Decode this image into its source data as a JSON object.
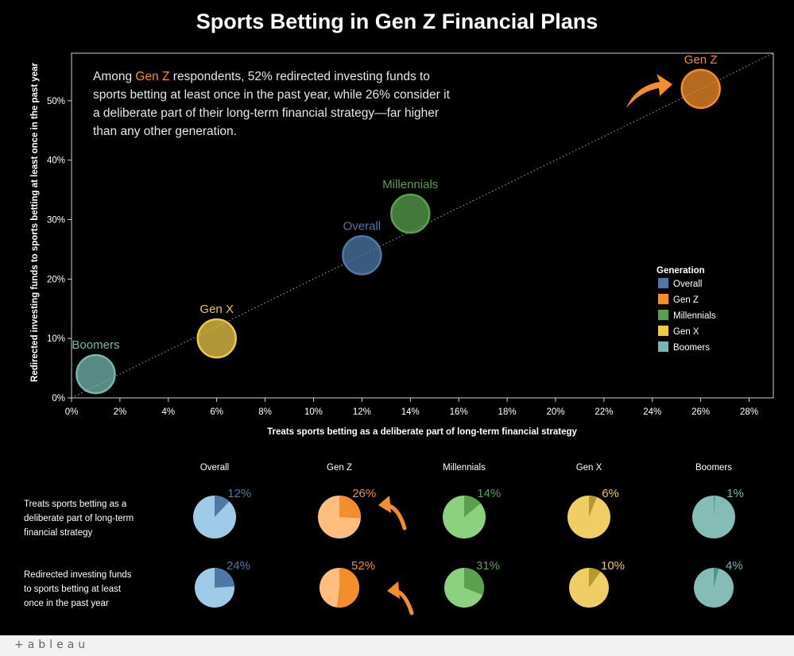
{
  "title": "Sports Betting in Gen Z Financial Plans",
  "annotation": {
    "prefix": "Among ",
    "highlight": "Gen Z",
    "line1_rest": " respondents, 52% redirected investing funds to",
    "line2": "sports betting at least once in the past year, while 26% consider it",
    "line3": "a deliberate part of their long-term financial strategy—far higher",
    "line4": "than any other generation."
  },
  "legend": {
    "title": "Generation",
    "items": [
      {
        "label": "Overall",
        "color": "#4e79a7"
      },
      {
        "label": "Gen Z",
        "color": "#f28e2b"
      },
      {
        "label": "Millennials",
        "color": "#59a14f"
      },
      {
        "label": "Gen X",
        "color": "#edc948"
      },
      {
        "label": "Boomers",
        "color": "#76b7b2"
      }
    ]
  },
  "chart_data": [
    {
      "type": "scatter",
      "xlabel": "Treats sports betting as a deliberate part of long-term financial strategy",
      "ylabel": "Redirected investing funds to sports betting at least once in the past year",
      "xlim": [
        0,
        0.29
      ],
      "ylim": [
        0,
        0.58
      ],
      "x_ticks": [
        "0%",
        "2%",
        "4%",
        "6%",
        "8%",
        "10%",
        "12%",
        "14%",
        "16%",
        "18%",
        "20%",
        "22%",
        "24%",
        "26%",
        "28%"
      ],
      "y_ticks": [
        "0%",
        "10%",
        "20%",
        "30%",
        "40%",
        "50%"
      ],
      "grid": false,
      "trend_line": "dotted diagonal",
      "series": [
        {
          "name": "Boomers",
          "x": 0.01,
          "y": 0.04,
          "color": "#76b7b2",
          "label_color": "#76b7b2"
        },
        {
          "name": "Gen X",
          "x": 0.06,
          "y": 0.1,
          "color": "#edc948",
          "label_color": "#edc948"
        },
        {
          "name": "Overall",
          "x": 0.12,
          "y": 0.24,
          "color": "#4e79a7",
          "label_color": "#4e79a7"
        },
        {
          "name": "Millennials",
          "x": 0.14,
          "y": 0.31,
          "color": "#59a14f",
          "label_color": "#59a14f"
        },
        {
          "name": "Gen Z",
          "x": 0.26,
          "y": 0.52,
          "color": "#f28e2b",
          "label_color": "#f28e2b"
        }
      ]
    },
    {
      "type": "pie",
      "columns": [
        "Overall",
        "Gen Z",
        "Millennials",
        "Gen X",
        "Boomers"
      ],
      "rows": [
        {
          "label_lines": [
            "Treats sports betting as a",
            "deliberate part of long-term",
            "financial strategy"
          ],
          "values": [
            0.12,
            0.26,
            0.14,
            0.06,
            0.01
          ],
          "value_labels": [
            "12%",
            "26%",
            "14%",
            "6%",
            "1%"
          ]
        },
        {
          "label_lines": [
            "Redirected investing funds",
            "to sports betting at least",
            "once in the past year"
          ],
          "values": [
            0.24,
            0.52,
            0.31,
            0.1,
            0.04
          ],
          "value_labels": [
            "24%",
            "52%",
            "31%",
            "10%",
            "4%"
          ]
        }
      ],
      "colors": [
        {
          "dark": "#4e79a7",
          "light": "#a0cbe8"
        },
        {
          "dark": "#f28e2b",
          "light": "#ffbe7d"
        },
        {
          "dark": "#59a14f",
          "light": "#8cd17d"
        },
        {
          "dark": "#b6992d",
          "light": "#f1ce63"
        },
        {
          "dark": "#499894",
          "light": "#86bcb6"
        }
      ],
      "label_colors": [
        "#4e79a7",
        "#f28e2b",
        "#59a14f",
        "#edc948",
        "#76b7b2"
      ]
    }
  ],
  "footer": {
    "logo_text": "+ableau"
  }
}
